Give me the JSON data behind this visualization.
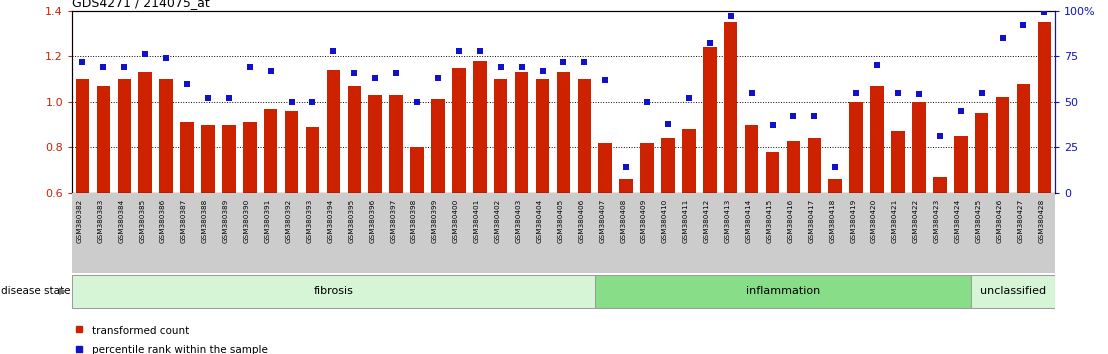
{
  "title": "GDS4271 / 214075_at",
  "samples": [
    "GSM380382",
    "GSM380383",
    "GSM380384",
    "GSM380385",
    "GSM380386",
    "GSM380387",
    "GSM380388",
    "GSM380389",
    "GSM380390",
    "GSM380391",
    "GSM380392",
    "GSM380393",
    "GSM380394",
    "GSM380395",
    "GSM380396",
    "GSM380397",
    "GSM380398",
    "GSM380399",
    "GSM380400",
    "GSM380401",
    "GSM380402",
    "GSM380403",
    "GSM380404",
    "GSM380405",
    "GSM380406",
    "GSM380407",
    "GSM380408",
    "GSM380409",
    "GSM380410",
    "GSM380411",
    "GSM380412",
    "GSM380413",
    "GSM380414",
    "GSM380415",
    "GSM380416",
    "GSM380417",
    "GSM380418",
    "GSM380419",
    "GSM380420",
    "GSM380421",
    "GSM380422",
    "GSM380423",
    "GSM380424",
    "GSM380425",
    "GSM380426",
    "GSM380427",
    "GSM380428"
  ],
  "transformed_count": [
    1.1,
    1.07,
    1.1,
    1.13,
    1.1,
    0.91,
    0.9,
    0.9,
    0.91,
    0.97,
    0.96,
    0.89,
    1.14,
    1.07,
    1.03,
    1.03,
    0.8,
    1.01,
    1.15,
    1.18,
    1.1,
    1.13,
    1.1,
    1.13,
    1.1,
    0.82,
    0.66,
    0.82,
    0.84,
    0.88,
    1.24,
    1.35,
    0.9,
    0.78,
    0.83,
    0.84,
    0.66,
    1.0,
    1.07,
    0.87,
    1.0,
    0.67,
    0.85,
    0.95,
    1.02,
    1.08,
    1.35
  ],
  "percentile_rank": [
    72,
    69,
    69,
    76,
    74,
    60,
    52,
    52,
    69,
    67,
    50,
    50,
    78,
    66,
    63,
    66,
    50,
    63,
    78,
    78,
    69,
    69,
    67,
    72,
    72,
    62,
    14,
    50,
    38,
    52,
    82,
    97,
    55,
    37,
    42,
    42,
    14,
    55,
    70,
    55,
    54,
    31,
    45,
    55,
    85,
    92,
    99
  ],
  "groups": [
    {
      "label": "fibrosis",
      "start": 0,
      "end": 24,
      "color": "#d6f5d6"
    },
    {
      "label": "inflammation",
      "start": 25,
      "end": 42,
      "color": "#88dd88"
    },
    {
      "label": "unclassified",
      "start": 43,
      "end": 46,
      "color": "#d6f5d6"
    }
  ],
  "ylim_left": [
    0.6,
    1.4
  ],
  "ylim_right": [
    0,
    100
  ],
  "yticks_left": [
    0.6,
    0.8,
    1.0,
    1.2,
    1.4
  ],
  "yticks_right": [
    0,
    25,
    50,
    75,
    100
  ],
  "ytick_labels_right": [
    "0",
    "25",
    "50",
    "75",
    "100%"
  ],
  "dotted_lines": [
    0.8,
    1.0,
    1.2
  ],
  "bar_color": "#cc2200",
  "dot_color": "#1111cc",
  "bar_bottom": 0.6,
  "left_color": "#cc2200",
  "right_color": "#1111cc",
  "tick_area_bg": "#cccccc",
  "disease_state_label": "disease state",
  "legend_items": [
    {
      "label": "transformed count",
      "color": "#cc2200",
      "marker": "s"
    },
    {
      "label": "percentile rank within the sample",
      "color": "#1111cc",
      "marker": "s"
    }
  ]
}
